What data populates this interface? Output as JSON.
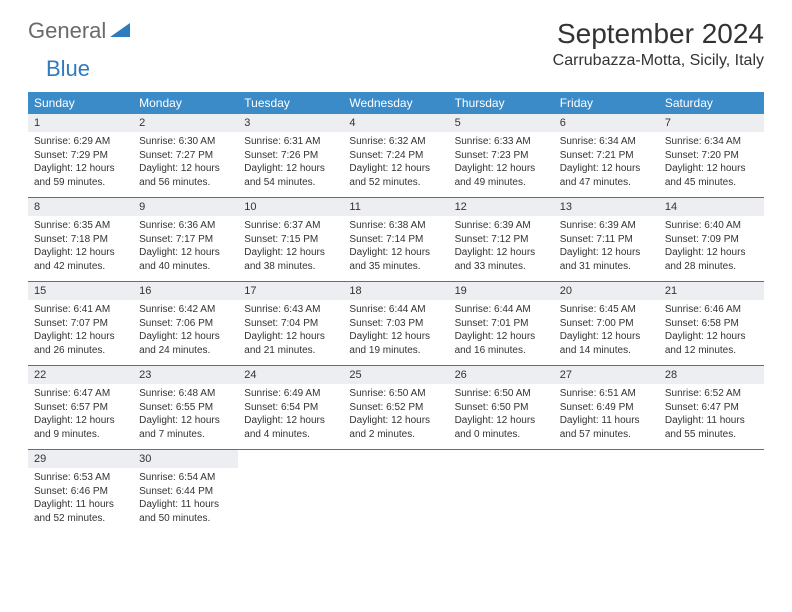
{
  "logo": {
    "general": "General",
    "blue": "Blue"
  },
  "title": "September 2024",
  "location": "Carrubazza-Motta, Sicily, Italy",
  "colors": {
    "header_bg": "#3b8bc9",
    "header_text": "#ffffff",
    "daynum_bg": "#eceef1",
    "sep_border": "#2f7bbf",
    "logo_gray": "#6a6a6a",
    "logo_blue": "#2f7bbf",
    "text": "#333333",
    "background": "#ffffff"
  },
  "typography": {
    "month_title_fontsize": 28,
    "location_fontsize": 16,
    "dow_fontsize": 12,
    "daynum_fontsize": 11,
    "cell_fontsize": 10
  },
  "calendar": {
    "daysOfWeek": [
      "Sunday",
      "Monday",
      "Tuesday",
      "Wednesday",
      "Thursday",
      "Friday",
      "Saturday"
    ],
    "weeks": [
      [
        {
          "n": "1",
          "sunrise": "Sunrise: 6:29 AM",
          "sunset": "Sunset: 7:29 PM",
          "day1": "Daylight: 12 hours",
          "day2": "and 59 minutes."
        },
        {
          "n": "2",
          "sunrise": "Sunrise: 6:30 AM",
          "sunset": "Sunset: 7:27 PM",
          "day1": "Daylight: 12 hours",
          "day2": "and 56 minutes."
        },
        {
          "n": "3",
          "sunrise": "Sunrise: 6:31 AM",
          "sunset": "Sunset: 7:26 PM",
          "day1": "Daylight: 12 hours",
          "day2": "and 54 minutes."
        },
        {
          "n": "4",
          "sunrise": "Sunrise: 6:32 AM",
          "sunset": "Sunset: 7:24 PM",
          "day1": "Daylight: 12 hours",
          "day2": "and 52 minutes."
        },
        {
          "n": "5",
          "sunrise": "Sunrise: 6:33 AM",
          "sunset": "Sunset: 7:23 PM",
          "day1": "Daylight: 12 hours",
          "day2": "and 49 minutes."
        },
        {
          "n": "6",
          "sunrise": "Sunrise: 6:34 AM",
          "sunset": "Sunset: 7:21 PM",
          "day1": "Daylight: 12 hours",
          "day2": "and 47 minutes."
        },
        {
          "n": "7",
          "sunrise": "Sunrise: 6:34 AM",
          "sunset": "Sunset: 7:20 PM",
          "day1": "Daylight: 12 hours",
          "day2": "and 45 minutes."
        }
      ],
      [
        {
          "n": "8",
          "sunrise": "Sunrise: 6:35 AM",
          "sunset": "Sunset: 7:18 PM",
          "day1": "Daylight: 12 hours",
          "day2": "and 42 minutes."
        },
        {
          "n": "9",
          "sunrise": "Sunrise: 6:36 AM",
          "sunset": "Sunset: 7:17 PM",
          "day1": "Daylight: 12 hours",
          "day2": "and 40 minutes."
        },
        {
          "n": "10",
          "sunrise": "Sunrise: 6:37 AM",
          "sunset": "Sunset: 7:15 PM",
          "day1": "Daylight: 12 hours",
          "day2": "and 38 minutes."
        },
        {
          "n": "11",
          "sunrise": "Sunrise: 6:38 AM",
          "sunset": "Sunset: 7:14 PM",
          "day1": "Daylight: 12 hours",
          "day2": "and 35 minutes."
        },
        {
          "n": "12",
          "sunrise": "Sunrise: 6:39 AM",
          "sunset": "Sunset: 7:12 PM",
          "day1": "Daylight: 12 hours",
          "day2": "and 33 minutes."
        },
        {
          "n": "13",
          "sunrise": "Sunrise: 6:39 AM",
          "sunset": "Sunset: 7:11 PM",
          "day1": "Daylight: 12 hours",
          "day2": "and 31 minutes."
        },
        {
          "n": "14",
          "sunrise": "Sunrise: 6:40 AM",
          "sunset": "Sunset: 7:09 PM",
          "day1": "Daylight: 12 hours",
          "day2": "and 28 minutes."
        }
      ],
      [
        {
          "n": "15",
          "sunrise": "Sunrise: 6:41 AM",
          "sunset": "Sunset: 7:07 PM",
          "day1": "Daylight: 12 hours",
          "day2": "and 26 minutes."
        },
        {
          "n": "16",
          "sunrise": "Sunrise: 6:42 AM",
          "sunset": "Sunset: 7:06 PM",
          "day1": "Daylight: 12 hours",
          "day2": "and 24 minutes."
        },
        {
          "n": "17",
          "sunrise": "Sunrise: 6:43 AM",
          "sunset": "Sunset: 7:04 PM",
          "day1": "Daylight: 12 hours",
          "day2": "and 21 minutes."
        },
        {
          "n": "18",
          "sunrise": "Sunrise: 6:44 AM",
          "sunset": "Sunset: 7:03 PM",
          "day1": "Daylight: 12 hours",
          "day2": "and 19 minutes."
        },
        {
          "n": "19",
          "sunrise": "Sunrise: 6:44 AM",
          "sunset": "Sunset: 7:01 PM",
          "day1": "Daylight: 12 hours",
          "day2": "and 16 minutes."
        },
        {
          "n": "20",
          "sunrise": "Sunrise: 6:45 AM",
          "sunset": "Sunset: 7:00 PM",
          "day1": "Daylight: 12 hours",
          "day2": "and 14 minutes."
        },
        {
          "n": "21",
          "sunrise": "Sunrise: 6:46 AM",
          "sunset": "Sunset: 6:58 PM",
          "day1": "Daylight: 12 hours",
          "day2": "and 12 minutes."
        }
      ],
      [
        {
          "n": "22",
          "sunrise": "Sunrise: 6:47 AM",
          "sunset": "Sunset: 6:57 PM",
          "day1": "Daylight: 12 hours",
          "day2": "and 9 minutes."
        },
        {
          "n": "23",
          "sunrise": "Sunrise: 6:48 AM",
          "sunset": "Sunset: 6:55 PM",
          "day1": "Daylight: 12 hours",
          "day2": "and 7 minutes."
        },
        {
          "n": "24",
          "sunrise": "Sunrise: 6:49 AM",
          "sunset": "Sunset: 6:54 PM",
          "day1": "Daylight: 12 hours",
          "day2": "and 4 minutes."
        },
        {
          "n": "25",
          "sunrise": "Sunrise: 6:50 AM",
          "sunset": "Sunset: 6:52 PM",
          "day1": "Daylight: 12 hours",
          "day2": "and 2 minutes."
        },
        {
          "n": "26",
          "sunrise": "Sunrise: 6:50 AM",
          "sunset": "Sunset: 6:50 PM",
          "day1": "Daylight: 12 hours",
          "day2": "and 0 minutes."
        },
        {
          "n": "27",
          "sunrise": "Sunrise: 6:51 AM",
          "sunset": "Sunset: 6:49 PM",
          "day1": "Daylight: 11 hours",
          "day2": "and 57 minutes."
        },
        {
          "n": "28",
          "sunrise": "Sunrise: 6:52 AM",
          "sunset": "Sunset: 6:47 PM",
          "day1": "Daylight: 11 hours",
          "day2": "and 55 minutes."
        }
      ],
      [
        {
          "n": "29",
          "sunrise": "Sunrise: 6:53 AM",
          "sunset": "Sunset: 6:46 PM",
          "day1": "Daylight: 11 hours",
          "day2": "and 52 minutes."
        },
        {
          "n": "30",
          "sunrise": "Sunrise: 6:54 AM",
          "sunset": "Sunset: 6:44 PM",
          "day1": "Daylight: 11 hours",
          "day2": "and 50 minutes."
        },
        null,
        null,
        null,
        null,
        null
      ]
    ]
  }
}
